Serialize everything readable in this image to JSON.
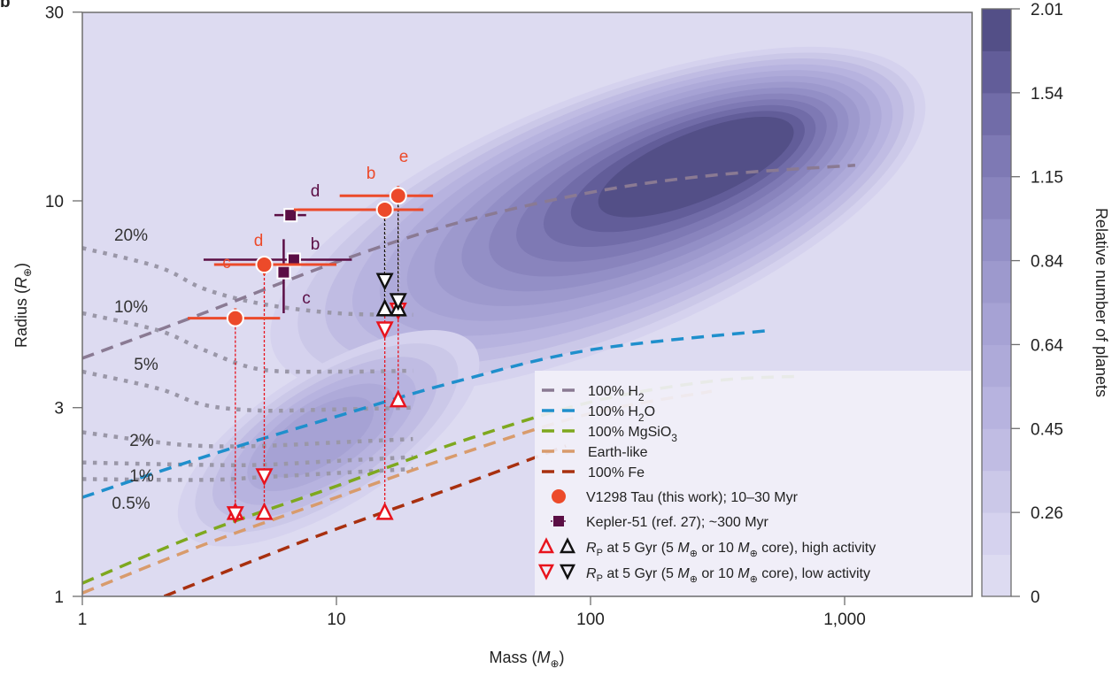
{
  "chart_data": {
    "type": "scatter",
    "panel_label": "b",
    "xlabel": "Mass (M⊕)",
    "ylabel": "Radius (R⊕)",
    "xscale": "log",
    "yscale": "log",
    "xlim": [
      1,
      3000
    ],
    "ylim": [
      1,
      30
    ],
    "xticks": [
      {
        "value": 1,
        "label": "1"
      },
      {
        "value": 10,
        "label": "10"
      },
      {
        "value": 100,
        "label": "100"
      },
      {
        "value": 1000,
        "label": "1,000"
      }
    ],
    "yticks": [
      {
        "value": 1,
        "label": "1"
      },
      {
        "value": 3,
        "label": "3"
      },
      {
        "value": 10,
        "label": "10"
      },
      {
        "value": 30,
        "label": "30"
      }
    ],
    "colorbar": {
      "label": "Relative number of planets",
      "ticks": [
        "0",
        "0.26",
        "0.45",
        "0.64",
        "0.84",
        "1.15",
        "1.54",
        "2.01"
      ],
      "colors": [
        "#dddbf1",
        "#d5d2ee",
        "#cbc8e8",
        "#c0bce3",
        "#b7b3df",
        "#aeaad9",
        "#a6a2d4",
        "#9d99cd",
        "#938fc6",
        "#8984bd",
        "#7e79b4",
        "#716ca8",
        "#625d99",
        "#534f87"
      ]
    },
    "density_peaks": [
      {
        "mass": 280,
        "radius": 12.5,
        "level": 2.0
      },
      {
        "mass": 9,
        "radius": 2.6,
        "level": 0.5
      }
    ],
    "composition_curves": [
      {
        "name": "100% H₂",
        "color": "#8a7a93",
        "points": [
          [
            1,
            4.0
          ],
          [
            3,
            5.2
          ],
          [
            10,
            7.0
          ],
          [
            30,
            8.8
          ],
          [
            100,
            10.5
          ],
          [
            300,
            11.6
          ],
          [
            1100,
            12.3
          ]
        ]
      },
      {
        "name": "100% H₂O",
        "color": "#1f8fcc",
        "points": [
          [
            1,
            1.78
          ],
          [
            3,
            2.25
          ],
          [
            10,
            2.85
          ],
          [
            30,
            3.5
          ],
          [
            100,
            4.2
          ],
          [
            500,
            4.7
          ]
        ]
      },
      {
        "name": "100% MgSiO₃",
        "color": "#7ea81e",
        "points": [
          [
            1,
            1.08
          ],
          [
            3,
            1.45
          ],
          [
            10,
            1.9
          ],
          [
            30,
            2.45
          ],
          [
            100,
            3.1
          ],
          [
            300,
            3.5
          ],
          [
            650,
            3.6
          ]
        ]
      },
      {
        "name": "Earth-like",
        "color": "#d89b6c",
        "points": [
          [
            1,
            1.02
          ],
          [
            3,
            1.35
          ],
          [
            10,
            1.78
          ],
          [
            30,
            2.28
          ],
          [
            100,
            2.9
          ],
          [
            300,
            3.3
          ]
        ]
      },
      {
        "name": "100% Fe",
        "color": "#a8300f",
        "points": [
          [
            2.1,
            1.0
          ],
          [
            5,
            1.25
          ],
          [
            10,
            1.48
          ],
          [
            30,
            1.9
          ],
          [
            80,
            2.4
          ]
        ]
      }
    ],
    "envelope_contours": [
      {
        "label": "20%",
        "points": [
          [
            1,
            7.6
          ],
          [
            2,
            6.8
          ],
          [
            3,
            6.0
          ],
          [
            5,
            5.5
          ],
          [
            10,
            5.2
          ],
          [
            20,
            5.15
          ]
        ]
      },
      {
        "label": "10%",
        "points": [
          [
            1,
            5.2
          ],
          [
            2,
            4.7
          ],
          [
            3,
            4.2
          ],
          [
            5,
            3.75
          ],
          [
            10,
            3.7
          ],
          [
            20,
            3.72
          ]
        ]
      },
      {
        "label": "5%",
        "points": [
          [
            1,
            3.7
          ],
          [
            2,
            3.35
          ],
          [
            3,
            3.05
          ],
          [
            5,
            2.95
          ],
          [
            10,
            2.97
          ],
          [
            20,
            3.0
          ]
        ]
      },
      {
        "label": "2%",
        "points": [
          [
            1,
            2.6
          ],
          [
            2,
            2.45
          ],
          [
            3,
            2.4
          ],
          [
            5,
            2.4
          ],
          [
            10,
            2.45
          ],
          [
            20,
            2.5
          ]
        ]
      },
      {
        "label": "1%",
        "points": [
          [
            1,
            2.18
          ],
          [
            3,
            2.15
          ],
          [
            5,
            2.15
          ],
          [
            10,
            2.2
          ],
          [
            20,
            2.25
          ]
        ]
      },
      {
        "label": "0.5%",
        "points": [
          [
            1,
            1.98
          ],
          [
            3,
            1.97
          ],
          [
            5,
            2.0
          ],
          [
            10,
            2.05
          ],
          [
            20,
            2.1
          ]
        ]
      }
    ],
    "series": [
      {
        "name": "V1298 Tau (this work); 10–30 Myr",
        "color": "#ec4a2a",
        "marker": "circle",
        "points": [
          {
            "label": "c",
            "mass": 4.0,
            "mass_lo": 2.6,
            "mass_hi": 6.0,
            "radius": 5.05,
            "radius_lo": 4.8,
            "radius_hi": 5.35
          },
          {
            "label": "d",
            "mass": 5.2,
            "mass_lo": 3.3,
            "mass_hi": 10.0,
            "radius": 6.9,
            "radius_lo": 6.5,
            "radius_hi": 7.2
          },
          {
            "label": "b",
            "mass": 15.5,
            "mass_lo": 6.8,
            "mass_hi": 22.0,
            "radius": 9.5,
            "radius_lo": 9.0,
            "radius_hi": 9.9
          },
          {
            "label": "e",
            "mass": 17.5,
            "mass_lo": 10.3,
            "mass_hi": 24.0,
            "radius": 10.3,
            "radius_lo": 9.9,
            "radius_hi": 10.9
          }
        ]
      },
      {
        "name": "Kepler-51 (ref. 27); ~300 Myr",
        "color": "#5b0e45",
        "marker": "square",
        "points": [
          {
            "label": "d",
            "mass": 6.6,
            "mass_lo": 5.7,
            "mass_hi": 7.6,
            "radius": 9.2,
            "radius_lo": 9.2,
            "radius_hi": 9.2
          },
          {
            "label": "b",
            "mass": 6.8,
            "mass_lo": 3.0,
            "mass_hi": 11.5,
            "radius": 7.1,
            "radius_lo": 7.1,
            "radius_hi": 7.1
          },
          {
            "label": "c",
            "mass": 6.2,
            "mass_lo": 6.2,
            "mass_hi": 6.2,
            "radius": 6.6,
            "radius_lo": 5.2,
            "radius_hi": 8.0
          }
        ]
      }
    ],
    "evolution_predictions": [
      {
        "planet": "c",
        "mass": 4.0,
        "core": "5 M⊕",
        "activity": "high",
        "radius": 1.62,
        "color": "#e8131d"
      },
      {
        "planet": "c",
        "mass": 4.0,
        "core": "5 M⊕",
        "activity": "low",
        "radius": 1.62,
        "color": "#e8131d"
      },
      {
        "planet": "d",
        "mass": 5.2,
        "core": "5 M⊕",
        "activity": "high",
        "radius": 1.62,
        "color": "#e8131d"
      },
      {
        "planet": "d",
        "mass": 5.2,
        "core": "5 M⊕",
        "activity": "low",
        "radius": 2.02,
        "color": "#e8131d"
      },
      {
        "planet": "b",
        "mass": 15.5,
        "core": "5 M⊕",
        "activity": "high",
        "radius": 1.62,
        "color": "#e8131d"
      },
      {
        "planet": "b",
        "mass": 15.5,
        "core": "5 M⊕",
        "activity": "low",
        "radius": 4.75,
        "color": "#e8131d"
      },
      {
        "planet": "b",
        "mass": 15.5,
        "core": "10 M⊕",
        "activity": "high",
        "radius": 5.3,
        "color": "#111111"
      },
      {
        "planet": "b",
        "mass": 15.5,
        "core": "10 M⊕",
        "activity": "low",
        "radius": 6.3,
        "color": "#111111"
      },
      {
        "planet": "e",
        "mass": 17.5,
        "core": "5 M⊕",
        "activity": "high",
        "radius": 3.12,
        "color": "#e8131d"
      },
      {
        "planet": "e",
        "mass": 17.5,
        "core": "5 M⊕",
        "activity": "low",
        "radius": 5.3,
        "color": "#e8131d"
      },
      {
        "planet": "e",
        "mass": 17.5,
        "core": "10 M⊕",
        "activity": "high",
        "radius": 5.3,
        "color": "#111111"
      },
      {
        "planet": "e",
        "mass": 17.5,
        "core": "10 M⊕",
        "activity": "low",
        "radius": 5.6,
        "color": "#111111"
      }
    ],
    "legend": {
      "placement": "lower-right",
      "entries": [
        {
          "kind": "dash",
          "color": "#8a7a93",
          "label": "100% H",
          "sub": "2",
          "tail": ""
        },
        {
          "kind": "dash",
          "color": "#1f8fcc",
          "label": "100% H",
          "sub": "2",
          "tail": "O"
        },
        {
          "kind": "dash",
          "color": "#7ea81e",
          "label": "100% MgSiO",
          "sub": "3",
          "tail": ""
        },
        {
          "kind": "dash",
          "color": "#d89b6c",
          "label": "Earth-like",
          "sub": "",
          "tail": ""
        },
        {
          "kind": "dash",
          "color": "#a8300f",
          "label": "100% Fe",
          "sub": "",
          "tail": ""
        },
        {
          "kind": "circle",
          "color": "#ec4a2a",
          "label": "V1298 Tau (this work); 10–30 Myr"
        },
        {
          "kind": "square",
          "color": "#5b0e45",
          "label": "Kepler-51 (ref. 27); ~300 Myr"
        },
        {
          "kind": "tri-up",
          "label_parts": [
            "R",
            "P",
            " at 5 Gyr (5 ",
            "M",
            "⊕",
            " or 10 ",
            "M",
            "⊕",
            " core), high activity"
          ]
        },
        {
          "kind": "tri-down",
          "label_parts": [
            "R",
            "P",
            " at 5 Gyr (5 ",
            "M",
            "⊕",
            " or 10 ",
            "M",
            "⊕",
            " core), low activity"
          ]
        }
      ]
    }
  }
}
